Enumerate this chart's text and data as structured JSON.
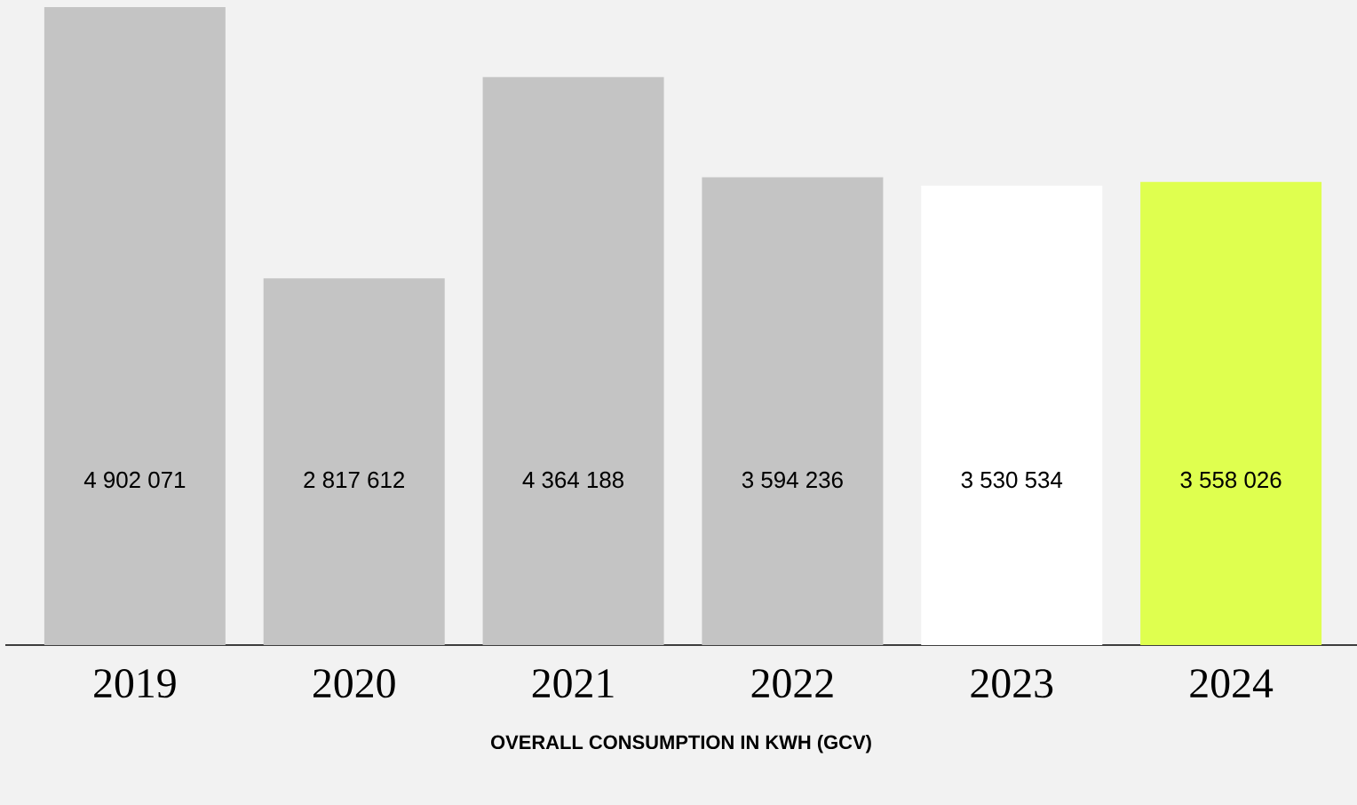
{
  "chart_data": {
    "type": "bar",
    "xlabel": "OVERALL CONSUMPTION IN KWH (GCV)",
    "categories": [
      "2019",
      "2020",
      "2021",
      "2022",
      "2023",
      "2024"
    ],
    "values": [
      4902071,
      2817612,
      4364188,
      3594236,
      3530534,
      3558026
    ],
    "colors": [
      "#c4c4c4",
      "#c4c4c4",
      "#c4c4c4",
      "#c4c4c4",
      "#ffffff",
      "#dfff4f"
    ],
    "value_labels": [
      "4 902 071",
      "2 817 612",
      "4 364 188",
      "3 594 236",
      "3 530 534",
      "3 558 026"
    ]
  }
}
